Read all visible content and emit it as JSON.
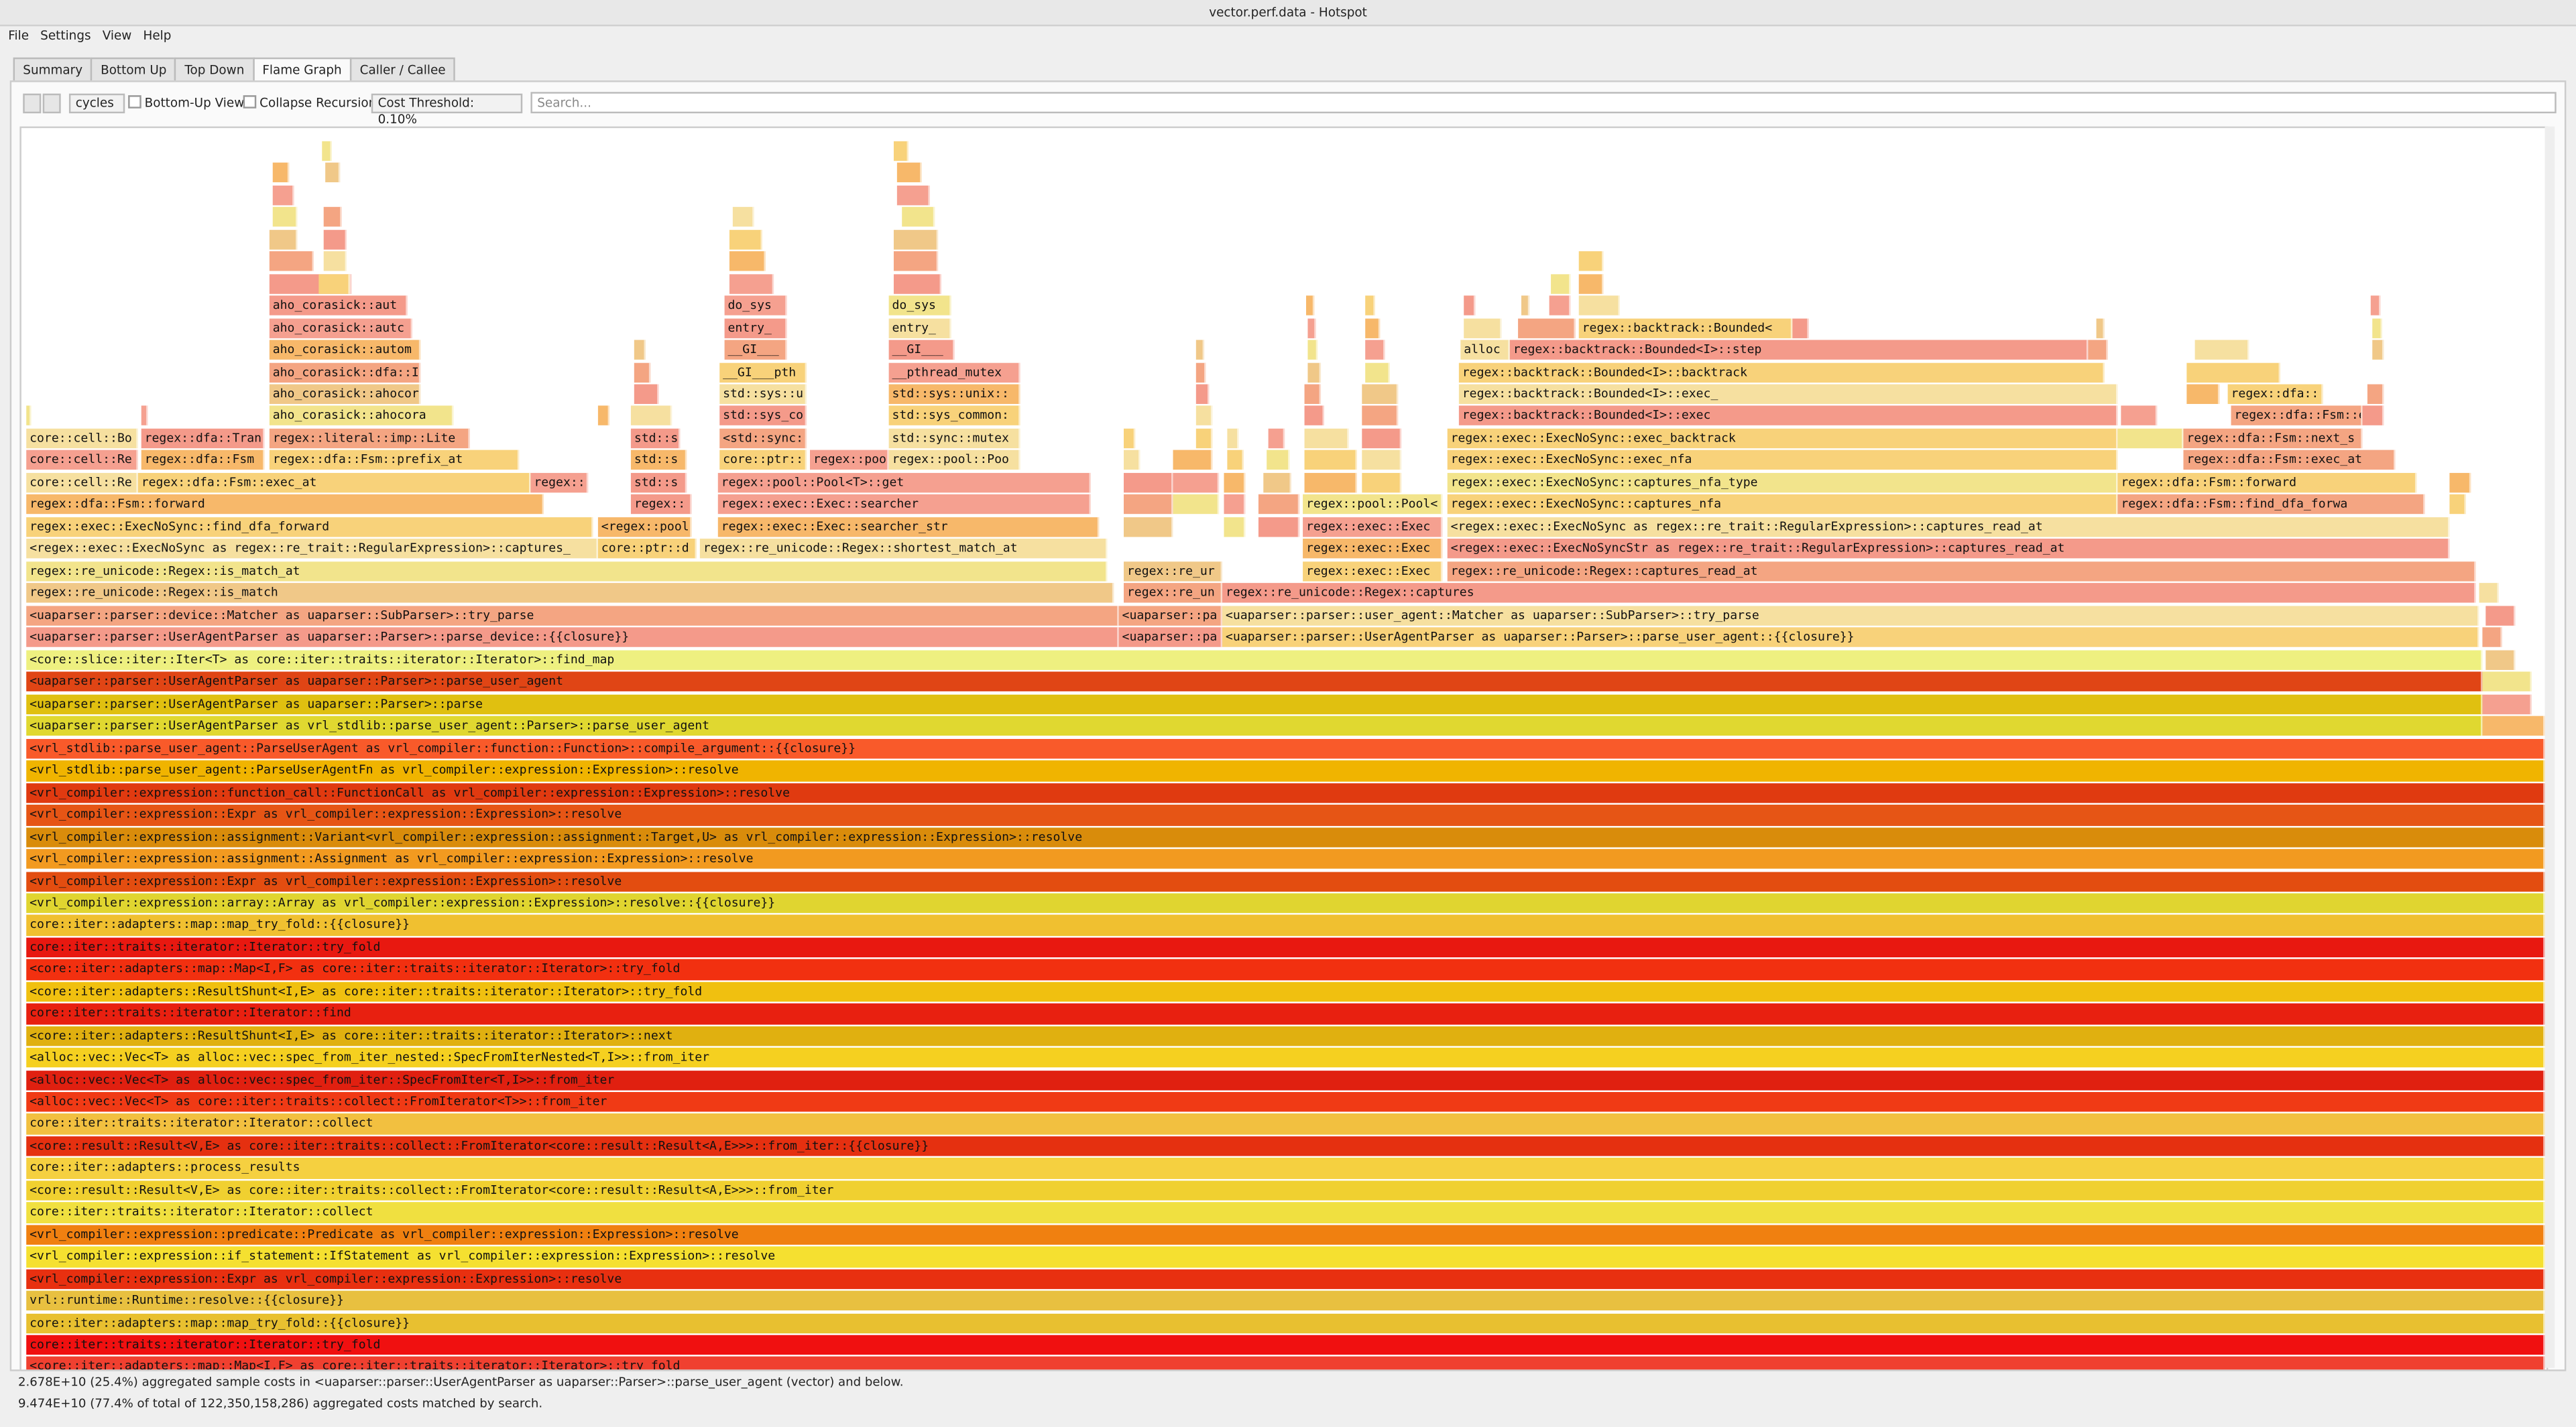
{
  "window": {
    "title": "vector.perf.data - Hotspot"
  },
  "menu": [
    "File",
    "Settings",
    "View",
    "Help"
  ],
  "tabs": [
    "Summary",
    "Bottom Up",
    "Top Down",
    "Flame Graph",
    "Caller / Callee"
  ],
  "toolbar": {
    "cost_type": "cycles",
    "bottom_up": "Bottom-Up View",
    "collapse": "Collapse Recursion",
    "threshold": "Cost Threshold: 0.10%",
    "search_placeholder": "Search..."
  },
  "frames": [
    "<vrl_stdlib::parse_user_agent::ParseUserAgent as vrl_compiler::function::Function>::compile_argument::{{closure}}",
    "<vrl_stdlib::parse_user_agent::ParseUserAgentFn as vrl_compiler::expression::Expression>::resolve",
    "<vrl_compiler::expression::function_call::FunctionCall as vrl_compiler::expression::Expression>::resolve",
    "<vrl_compiler::expression::Expr as vrl_compiler::expression::Expression>::resolve",
    "<vrl_compiler::expression::assignment::Variant<vrl_compiler::expression::assignment::Target,U> as vrl_compiler::expression::Expression>::resolve",
    "<vrl_compiler::expression::assignment::Assignment as vrl_compiler::expression::Expression>::resolve",
    "<vrl_compiler::expression::Expr as vrl_compiler::expression::Expression>::resolve",
    "<vrl_compiler::expression::array::Array as vrl_compiler::expression::Expression>::resolve::{{closure}}",
    "core::iter::adapters::map::map_try_fold::{{closure}}",
    "core::iter::traits::iterator::Iterator::try_fold",
    "<core::iter::adapters::map::Map<I,F> as core::iter::traits::iterator::Iterator>::try_fold",
    "<core::iter::adapters::ResultShunt<I,E> as core::iter::traits::iterator::Iterator>::try_fold",
    "core::iter::traits::iterator::Iterator::find",
    "<core::iter::adapters::ResultShunt<I,E> as core::iter::traits::iterator::Iterator>::next",
    "<alloc::vec::Vec<T> as alloc::vec::spec_from_iter_nested::SpecFromIterNested<T,I>>::from_iter",
    "<alloc::vec::Vec<T> as alloc::vec::spec_from_iter::SpecFromIter<T,I>>::from_iter",
    "<alloc::vec::Vec<T> as core::iter::traits::collect::FromIterator<T>>::from_iter",
    "core::iter::traits::iterator::Iterator::collect",
    "<core::result::Result<V,E> as core::iter::traits::collect::FromIterator<core::result::Result<A,E>>>::from_iter::{{closure}}",
    "core::iter::adapters::process_results",
    "<core::result::Result<V,E> as core::iter::traits::collect::FromIterator<core::result::Result<A,E>>>::from_iter",
    "core::iter::traits::iterator::Iterator::collect",
    "<vrl_compiler::expression::predicate::Predicate as vrl_compiler::expression::Expression>::resolve",
    "<vrl_compiler::expression::if_statement::IfStatement as vrl_compiler::expression::Expression>::resolve",
    "<vrl_compiler::expression::Expr as vrl_compiler::expression::Expression>::resolve",
    "vrl::runtime::Runtime::resolve::{{closure}}",
    "core::iter::adapters::map::map_try_fold::{{closure}}",
    "core::iter::traits::iterator::Iterator::try_fold",
    "<core::iter::adapters::map::Map<I,F> as core::iter::traits::iterator::Iterator>::try_fold",
    "<uaparser::parser::UserAgentParser as vrl_stdlib::parse_user_agent::Parser>::parse_user_agent",
    "<uaparser::parser::UserAgentParser as uaparser::Parser>::parse",
    "<uaparser::parser::UserAgentParser as uaparser::Parser>::parse_user_agent",
    "<core::slice::iter::Iter<T> as core::iter::traits::iterator::Iterator>::find_map",
    "<uaparser::parser::UserAgentParser as uaparser::Parser>::parse_device::{{closure}}",
    "<uaparser::pa",
    "<uaparser::parser::UserAgentParser as uaparser::Parser>::parse_user_agent::{{closure}}",
    "<uaparser::parser::device::Matcher as uaparser::SubParser>::try_parse",
    "<uaparser::pa",
    "<uaparser::parser::user_agent::Matcher as uaparser::SubParser>::try_parse",
    "regex::re_unicode::Regex::is_match",
    "regex::re_un",
    "regex::re_unicode::Regex::captures",
    "regex::re_unicode::Regex::is_match_at",
    "regex::re_ur",
    "regex::exec::Exec",
    "regex::re_unicode::Regex::captures_read_at",
    "<regex::exec::ExecNoSync as regex::re_trait::RegularExpression>::captures_",
    "core::ptr::d",
    "regex::re_unicode::Regex::shortest_match_at",
    "regex::exec::Exec",
    "<regex::exec::ExecNoSyncStr as regex::re_trait::RegularExpression>::captures_read_at",
    "regex::exec::ExecNoSync::find_dfa_forward",
    "<regex::pool:",
    "regex::exec::Exec::searcher_str",
    "regex::exec::Exec",
    "<regex::exec::ExecNoSync as regex::re_trait::RegularExpression>::captures_read_at",
    "regex::dfa::Fsm::forward",
    "regex::",
    "regex::exec::Exec::searcher",
    "regex::pool::Pool<",
    "regex::exec::ExecNoSync::captures_nfa",
    "regex::dfa::Fsm::find_dfa_forwa",
    "core::cell::Re",
    "regex::dfa::Fsm::exec_at",
    "regex::",
    "std::s",
    "regex::pool::Pool<T>::get",
    "regex::exec::ExecNoSync::captures_nfa_type",
    "regex::dfa::Fsm::forward",
    "core::cell::Re",
    "regex::dfa::Fsm",
    "regex::dfa::Fsm::prefix_at",
    "std::s",
    "core::ptr::",
    "regex::poo",
    "regex::pool::Poo",
    "regex::exec::ExecNoSync::exec_nfa",
    "regex::dfa::Fsm::exec_at",
    "core::cell::Bo",
    "regex::dfa::Tran",
    "regex::literal::imp::Lite",
    "std::s",
    "<std::sync:",
    "std::sync::mutex",
    "regex::exec::ExecNoSync::exec_backtrack",
    "regex::dfa::Fsm::next_s",
    "aho_corasick::ahocora",
    "std::sys_co",
    "std::sys_common:",
    "regex::backtrack::Bounded<I>::exec",
    "regex::dfa::Fsm::exec_b",
    "aho_corasick::ahocor",
    "std::sys::u",
    "std::sys::unix::",
    "regex::backtrack::Bounded<I>::exec_",
    "regex::dfa::",
    "aho_corasick::dfa::I",
    "__GI___pth",
    "__pthread_mutex",
    "regex::backtrack::Bounded<I>::backtrack",
    "aho_corasick::autom",
    "__GI___",
    "__GI___",
    "alloc",
    "regex::backtrack::Bounded<I>::step",
    "aho_corasick::autc",
    "entry_",
    "entry_",
    "regex::backtrack::Bounded<",
    "aho_corasick::aut",
    "do_sys",
    "do_sys"
  ],
  "status": [
    "2.678E+10 (25.4%) aggregated sample costs in <uaparser::parser::UserAgentParser as uaparser::Parser>::parse_user_agent (vector) and below.",
    "9.474E+10 (77.4% of total of 122,350,158,286) aggregated costs matched by search."
  ]
}
